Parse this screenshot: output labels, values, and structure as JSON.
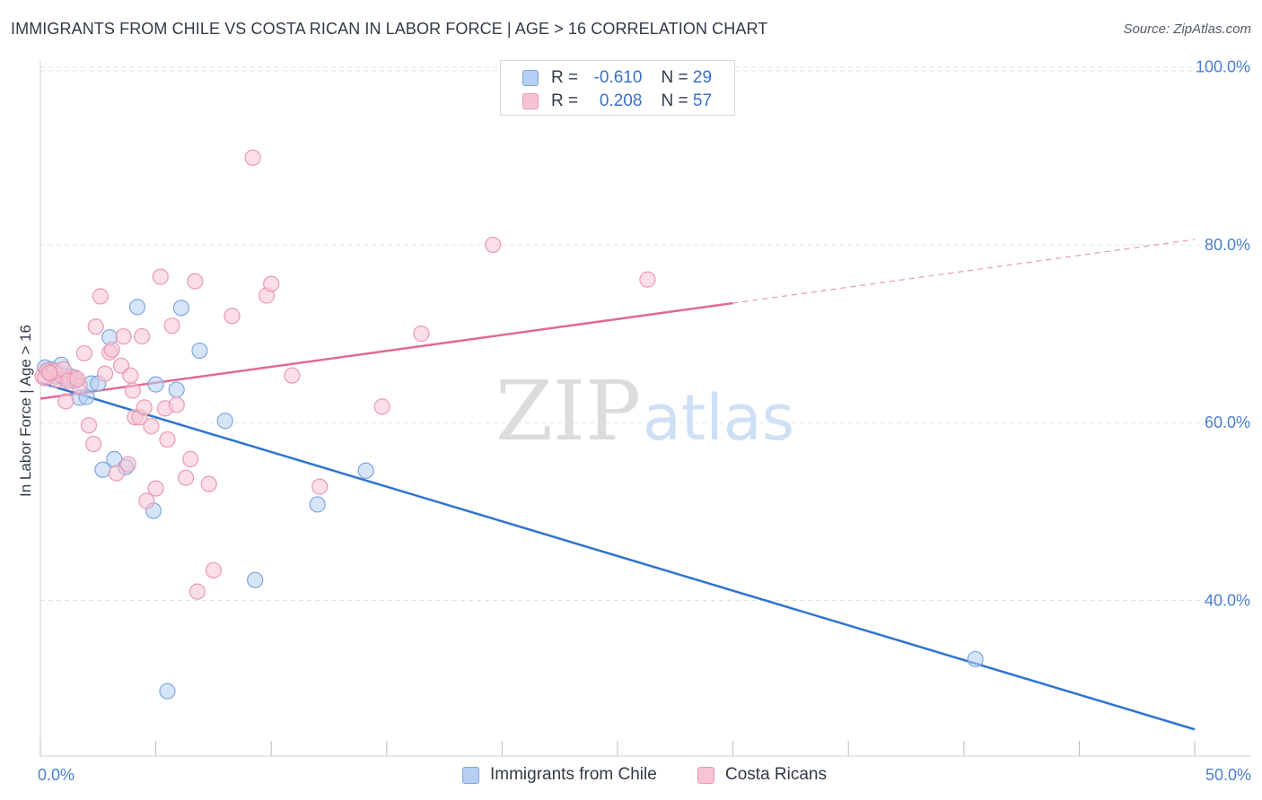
{
  "title": "IMMIGRANTS FROM CHILE VS COSTA RICAN IN LABOR FORCE | AGE > 16 CORRELATION CHART",
  "source": "Source: ZipAtlas.com",
  "watermark": {
    "zip": "ZIP",
    "atlas": "atlas"
  },
  "colors": {
    "blue_fill": "#b7cff2",
    "blue_stroke": "#7fa6df",
    "blue_line": "#2f74d0",
    "pink_fill": "#f7c3d3",
    "pink_stroke": "#e89ab3",
    "pink_line": "#e06a94",
    "axis_text": "#4a7fcf",
    "grid": "#e3e3e3"
  },
  "legend": {
    "rows": [
      {
        "r_label": "R =",
        "r_value": "-0.610",
        "n_label": "N =",
        "n_value": "29"
      },
      {
        "r_label": "R =",
        "r_value": "0.208",
        "n_label": "N =",
        "n_value": "57"
      }
    ]
  },
  "bottom_legend": [
    "Immigrants from Chile",
    "Costa Ricans"
  ],
  "chart_data": {
    "type": "scatter",
    "ylabel": "In Labor Force | Age > 16",
    "xlim": [
      0,
      50
    ],
    "ylim": [
      22.5,
      103.5
    ],
    "x_tick_labels": {
      "start": "0.0%",
      "end": "50.0%"
    },
    "y_ticks": [
      {
        "value": 100,
        "label": "100.0%"
      },
      {
        "value": 80,
        "label": "80.0%"
      },
      {
        "value": 60,
        "label": "60.0%"
      },
      {
        "value": 40,
        "label": "40.0%"
      }
    ],
    "series": [
      {
        "name": "Immigrants from Chile",
        "color": "blue",
        "points": [
          [
            0.2,
            66.2
          ],
          [
            0.4,
            65.5
          ],
          [
            0.5,
            66.0
          ],
          [
            0.7,
            65.2
          ],
          [
            0.9,
            66.5
          ],
          [
            1.1,
            64.9
          ],
          [
            1.3,
            65.2
          ],
          [
            1.7,
            62.8
          ],
          [
            2.0,
            62.9
          ],
          [
            2.2,
            64.4
          ],
          [
            2.5,
            64.4
          ],
          [
            3.0,
            69.6
          ],
          [
            3.2,
            55.9
          ],
          [
            3.7,
            55.0
          ],
          [
            2.7,
            54.7
          ],
          [
            4.2,
            73.0
          ],
          [
            4.9,
            50.1
          ],
          [
            5.0,
            64.3
          ],
          [
            5.5,
            29.8
          ],
          [
            5.9,
            63.7
          ],
          [
            6.1,
            72.9
          ],
          [
            6.9,
            68.1
          ],
          [
            8.0,
            60.2
          ],
          [
            9.3,
            42.3
          ],
          [
            12.0,
            50.8
          ],
          [
            14.1,
            54.6
          ],
          [
            40.5,
            33.4
          ],
          [
            0.3,
            65.8
          ],
          [
            1.5,
            64.7
          ]
        ],
        "trend": {
          "x": [
            0.0,
            50.0
          ],
          "y": [
            64.5,
            25.5
          ],
          "dashed_from": null
        }
      },
      {
        "name": "Costa Ricans",
        "color": "pink",
        "points": [
          [
            0.1,
            65.2
          ],
          [
            0.3,
            65.9
          ],
          [
            0.5,
            65.5
          ],
          [
            0.7,
            64.8
          ],
          [
            0.9,
            65.3
          ],
          [
            1.1,
            62.4
          ],
          [
            1.3,
            64.9
          ],
          [
            1.5,
            65.1
          ],
          [
            1.7,
            64.1
          ],
          [
            1.9,
            67.8
          ],
          [
            2.1,
            59.7
          ],
          [
            2.3,
            57.6
          ],
          [
            2.4,
            70.8
          ],
          [
            2.6,
            74.2
          ],
          [
            2.8,
            65.5
          ],
          [
            3.0,
            67.9
          ],
          [
            3.1,
            68.2
          ],
          [
            3.3,
            54.3
          ],
          [
            3.5,
            66.4
          ],
          [
            3.6,
            69.7
          ],
          [
            3.8,
            55.3
          ],
          [
            3.9,
            65.3
          ],
          [
            4.0,
            63.6
          ],
          [
            4.1,
            60.6
          ],
          [
            4.3,
            60.6
          ],
          [
            4.4,
            69.7
          ],
          [
            4.5,
            61.7
          ],
          [
            4.6,
            51.2
          ],
          [
            4.8,
            59.6
          ],
          [
            5.0,
            52.6
          ],
          [
            5.2,
            76.4
          ],
          [
            5.4,
            61.6
          ],
          [
            5.5,
            58.1
          ],
          [
            5.7,
            70.9
          ],
          [
            5.9,
            62.0
          ],
          [
            6.3,
            53.8
          ],
          [
            6.5,
            55.9
          ],
          [
            6.7,
            75.9
          ],
          [
            6.8,
            41.0
          ],
          [
            7.3,
            53.1
          ],
          [
            7.5,
            43.4
          ],
          [
            8.3,
            72.0
          ],
          [
            9.2,
            89.8
          ],
          [
            9.8,
            74.3
          ],
          [
            10.0,
            75.6
          ],
          [
            10.9,
            65.3
          ],
          [
            12.1,
            52.8
          ],
          [
            14.8,
            61.8
          ],
          [
            16.5,
            70.0
          ],
          [
            19.6,
            80.0
          ],
          [
            26.3,
            76.1
          ],
          [
            0.6,
            65.8
          ],
          [
            1.0,
            66.0
          ],
          [
            1.2,
            64.7
          ],
          [
            1.6,
            64.9
          ],
          [
            0.2,
            65.0
          ],
          [
            0.4,
            65.6
          ]
        ],
        "trend": {
          "x": [
            0.0,
            50.0
          ],
          "y": [
            62.7,
            80.6
          ],
          "dashed_from": 30.0
        }
      }
    ]
  }
}
